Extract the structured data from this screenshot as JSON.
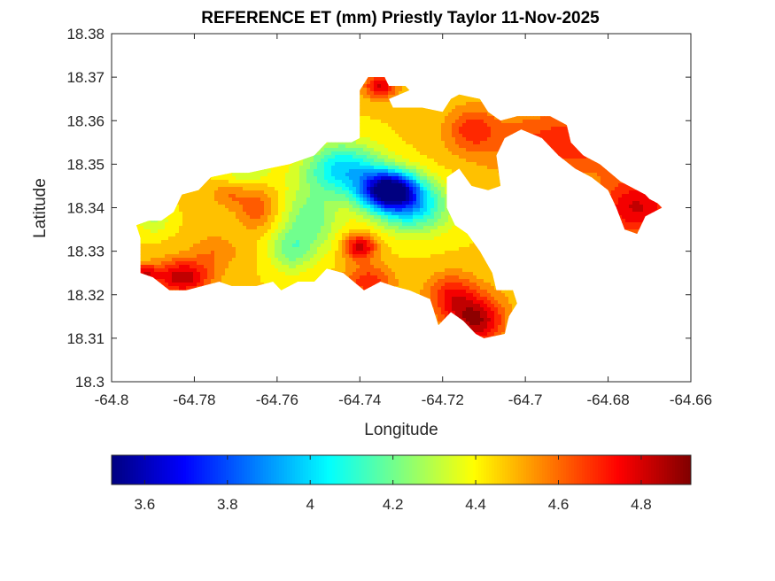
{
  "chart_data": {
    "type": "heatmap",
    "title": "REFERENCE ET (mm) Priestly Taylor 11-Nov-2025",
    "xlabel": "Longitude",
    "ylabel": "Latitude",
    "xlim": [
      -64.8,
      -64.66
    ],
    "ylim": [
      18.3,
      18.38
    ],
    "xticks": [
      -64.8,
      -64.78,
      -64.76,
      -64.74,
      -64.72,
      -64.7,
      -64.68,
      -64.66
    ],
    "yticks": [
      18.3,
      18.31,
      18.32,
      18.33,
      18.34,
      18.35,
      18.36,
      18.37,
      18.38
    ],
    "xtick_labels": [
      "-64.8",
      "-64.78",
      "-64.76",
      "-64.74",
      "-64.72",
      "-64.7",
      "-64.68",
      "-64.66"
    ],
    "ytick_labels": [
      "18.3",
      "18.31",
      "18.32",
      "18.33",
      "18.34",
      "18.35",
      "18.36",
      "18.37",
      "18.38"
    ],
    "colorbar": {
      "colormap": "jet",
      "range": [
        3.52,
        4.92
      ],
      "ticks": [
        3.6,
        3.8,
        4.0,
        4.2,
        4.4,
        4.6,
        4.8
      ],
      "tick_labels": [
        "3.6",
        "3.8",
        "4",
        "4.2",
        "4.4",
        "4.6",
        "4.8"
      ],
      "orientation": "horizontal",
      "position": "below"
    },
    "grid": false,
    "region_outline": [
      [
        -64.794,
        18.336
      ],
      [
        -64.791,
        18.337
      ],
      [
        -64.788,
        18.337
      ],
      [
        -64.785,
        18.339
      ],
      [
        -64.783,
        18.343
      ],
      [
        -64.779,
        18.344
      ],
      [
        -64.776,
        18.347
      ],
      [
        -64.771,
        18.348
      ],
      [
        -64.767,
        18.348
      ],
      [
        -64.762,
        18.349
      ],
      [
        -64.757,
        18.35
      ],
      [
        -64.751,
        18.352
      ],
      [
        -64.748,
        18.355
      ],
      [
        -64.742,
        18.355
      ],
      [
        -64.74,
        18.356
      ],
      [
        -64.74,
        18.362
      ],
      [
        -64.74,
        18.367
      ],
      [
        -64.738,
        18.37
      ],
      [
        -64.734,
        18.37
      ],
      [
        -64.733,
        18.368
      ],
      [
        -64.729,
        18.368
      ],
      [
        -64.728,
        18.367
      ],
      [
        -64.733,
        18.365
      ],
      [
        -64.732,
        18.363
      ],
      [
        -64.725,
        18.363
      ],
      [
        -64.72,
        18.362
      ],
      [
        -64.718,
        18.365
      ],
      [
        -64.716,
        18.366
      ],
      [
        -64.711,
        18.365
      ],
      [
        -64.709,
        18.362
      ],
      [
        -64.706,
        18.36
      ],
      [
        -64.702,
        18.361
      ],
      [
        -64.694,
        18.361
      ],
      [
        -64.69,
        18.359
      ],
      [
        -64.689,
        18.355
      ],
      [
        -64.686,
        18.352
      ],
      [
        -64.682,
        18.35
      ],
      [
        -64.677,
        18.346
      ],
      [
        -64.671,
        18.343
      ],
      [
        -64.67,
        18.342
      ],
      [
        -64.668,
        18.341
      ],
      [
        -64.667,
        18.34
      ],
      [
        -64.671,
        18.338
      ],
      [
        -64.673,
        18.334
      ],
      [
        -64.676,
        18.335
      ],
      [
        -64.678,
        18.34
      ],
      [
        -64.68,
        18.344
      ],
      [
        -64.684,
        18.347
      ],
      [
        -64.688,
        18.349
      ],
      [
        -64.692,
        18.352
      ],
      [
        -64.696,
        18.356
      ],
      [
        -64.701,
        18.358
      ],
      [
        -64.705,
        18.356
      ],
      [
        -64.707,
        18.352
      ],
      [
        -64.706,
        18.345
      ],
      [
        -64.709,
        18.344
      ],
      [
        -64.713,
        18.345
      ],
      [
        -64.716,
        18.349
      ],
      [
        -64.719,
        18.347
      ],
      [
        -64.719,
        18.34
      ],
      [
        -64.717,
        18.336
      ],
      [
        -64.714,
        18.334
      ],
      [
        -64.711,
        18.33
      ],
      [
        -64.708,
        18.325
      ],
      [
        -64.707,
        18.321
      ],
      [
        -64.703,
        18.321
      ],
      [
        -64.702,
        18.318
      ],
      [
        -64.704,
        18.315
      ],
      [
        -64.705,
        18.311
      ],
      [
        -64.71,
        18.31
      ],
      [
        -64.712,
        18.311
      ],
      [
        -64.715,
        18.314
      ],
      [
        -64.718,
        18.316
      ],
      [
        -64.721,
        18.313
      ],
      [
        -64.723,
        18.319
      ],
      [
        -64.728,
        18.321
      ],
      [
        -64.732,
        18.322
      ],
      [
        -64.735,
        18.323
      ],
      [
        -64.739,
        18.321
      ],
      [
        -64.744,
        18.325
      ],
      [
        -64.748,
        18.326
      ],
      [
        -64.751,
        18.323
      ],
      [
        -64.755,
        18.323
      ],
      [
        -64.759,
        18.321
      ],
      [
        -64.761,
        18.323
      ],
      [
        -64.765,
        18.322
      ],
      [
        -64.771,
        18.322
      ],
      [
        -64.774,
        18.323
      ],
      [
        -64.778,
        18.322
      ],
      [
        -64.782,
        18.321
      ],
      [
        -64.786,
        18.321
      ],
      [
        -64.79,
        18.324
      ],
      [
        -64.793,
        18.325
      ],
      [
        -64.793,
        18.33
      ],
      [
        -64.793,
        18.333
      ]
    ],
    "values_field": {
      "base": 4.45,
      "features": [
        {
          "lon": -64.733,
          "lat": 18.344,
          "amp": -0.93,
          "r_lon": 0.007,
          "r_lat": 0.0045
        },
        {
          "lon": -64.727,
          "lat": 18.34,
          "amp": -0.4,
          "r_lon": 0.009,
          "r_lat": 0.006
        },
        {
          "lon": -64.744,
          "lat": 18.349,
          "amp": -0.45,
          "r_lon": 0.009,
          "r_lat": 0.006
        },
        {
          "lon": -64.752,
          "lat": 18.337,
          "amp": -0.25,
          "r_lon": 0.007,
          "r_lat": 0.008
        },
        {
          "lon": -64.757,
          "lat": 18.33,
          "amp": -0.2,
          "r_lon": 0.005,
          "r_lat": 0.005
        },
        {
          "lon": -64.767,
          "lat": 18.348,
          "amp": -0.15,
          "r_lon": 0.006,
          "r_lat": 0.003
        },
        {
          "lon": -64.79,
          "lat": 18.337,
          "amp": -0.15,
          "r_lon": 0.004,
          "r_lat": 0.003
        },
        {
          "lon": -64.74,
          "lat": 18.331,
          "amp": 0.38,
          "r_lon": 0.004,
          "r_lat": 0.003
        },
        {
          "lon": -64.738,
          "lat": 18.323,
          "amp": 0.25,
          "r_lon": 0.006,
          "r_lat": 0.004
        },
        {
          "lon": -64.712,
          "lat": 18.314,
          "amp": 0.42,
          "r_lon": 0.007,
          "r_lat": 0.006
        },
        {
          "lon": -64.718,
          "lat": 18.32,
          "amp": 0.25,
          "r_lon": 0.006,
          "r_lat": 0.005
        },
        {
          "lon": -64.783,
          "lat": 18.324,
          "amp": 0.4,
          "r_lon": 0.007,
          "r_lat": 0.004
        },
        {
          "lon": -64.792,
          "lat": 18.325,
          "amp": 0.3,
          "r_lon": 0.003,
          "r_lat": 0.002
        },
        {
          "lon": -64.775,
          "lat": 18.33,
          "amp": 0.12,
          "r_lon": 0.006,
          "r_lat": 0.004
        },
        {
          "lon": -64.765,
          "lat": 18.34,
          "amp": 0.18,
          "r_lon": 0.005,
          "r_lat": 0.005
        },
        {
          "lon": -64.772,
          "lat": 18.343,
          "amp": 0.12,
          "r_lon": 0.004,
          "r_lat": 0.003
        },
        {
          "lon": -64.735,
          "lat": 18.368,
          "amp": 0.35,
          "r_lon": 0.004,
          "r_lat": 0.003
        },
        {
          "lon": -64.713,
          "lat": 18.358,
          "amp": 0.2,
          "r_lon": 0.006,
          "r_lat": 0.005
        },
        {
          "lon": -64.69,
          "lat": 18.355,
          "amp": 0.25,
          "r_lon": 0.02,
          "r_lat": 0.008
        },
        {
          "lon": -64.673,
          "lat": 18.34,
          "amp": 0.35,
          "r_lon": 0.01,
          "r_lat": 0.007
        }
      ]
    }
  }
}
